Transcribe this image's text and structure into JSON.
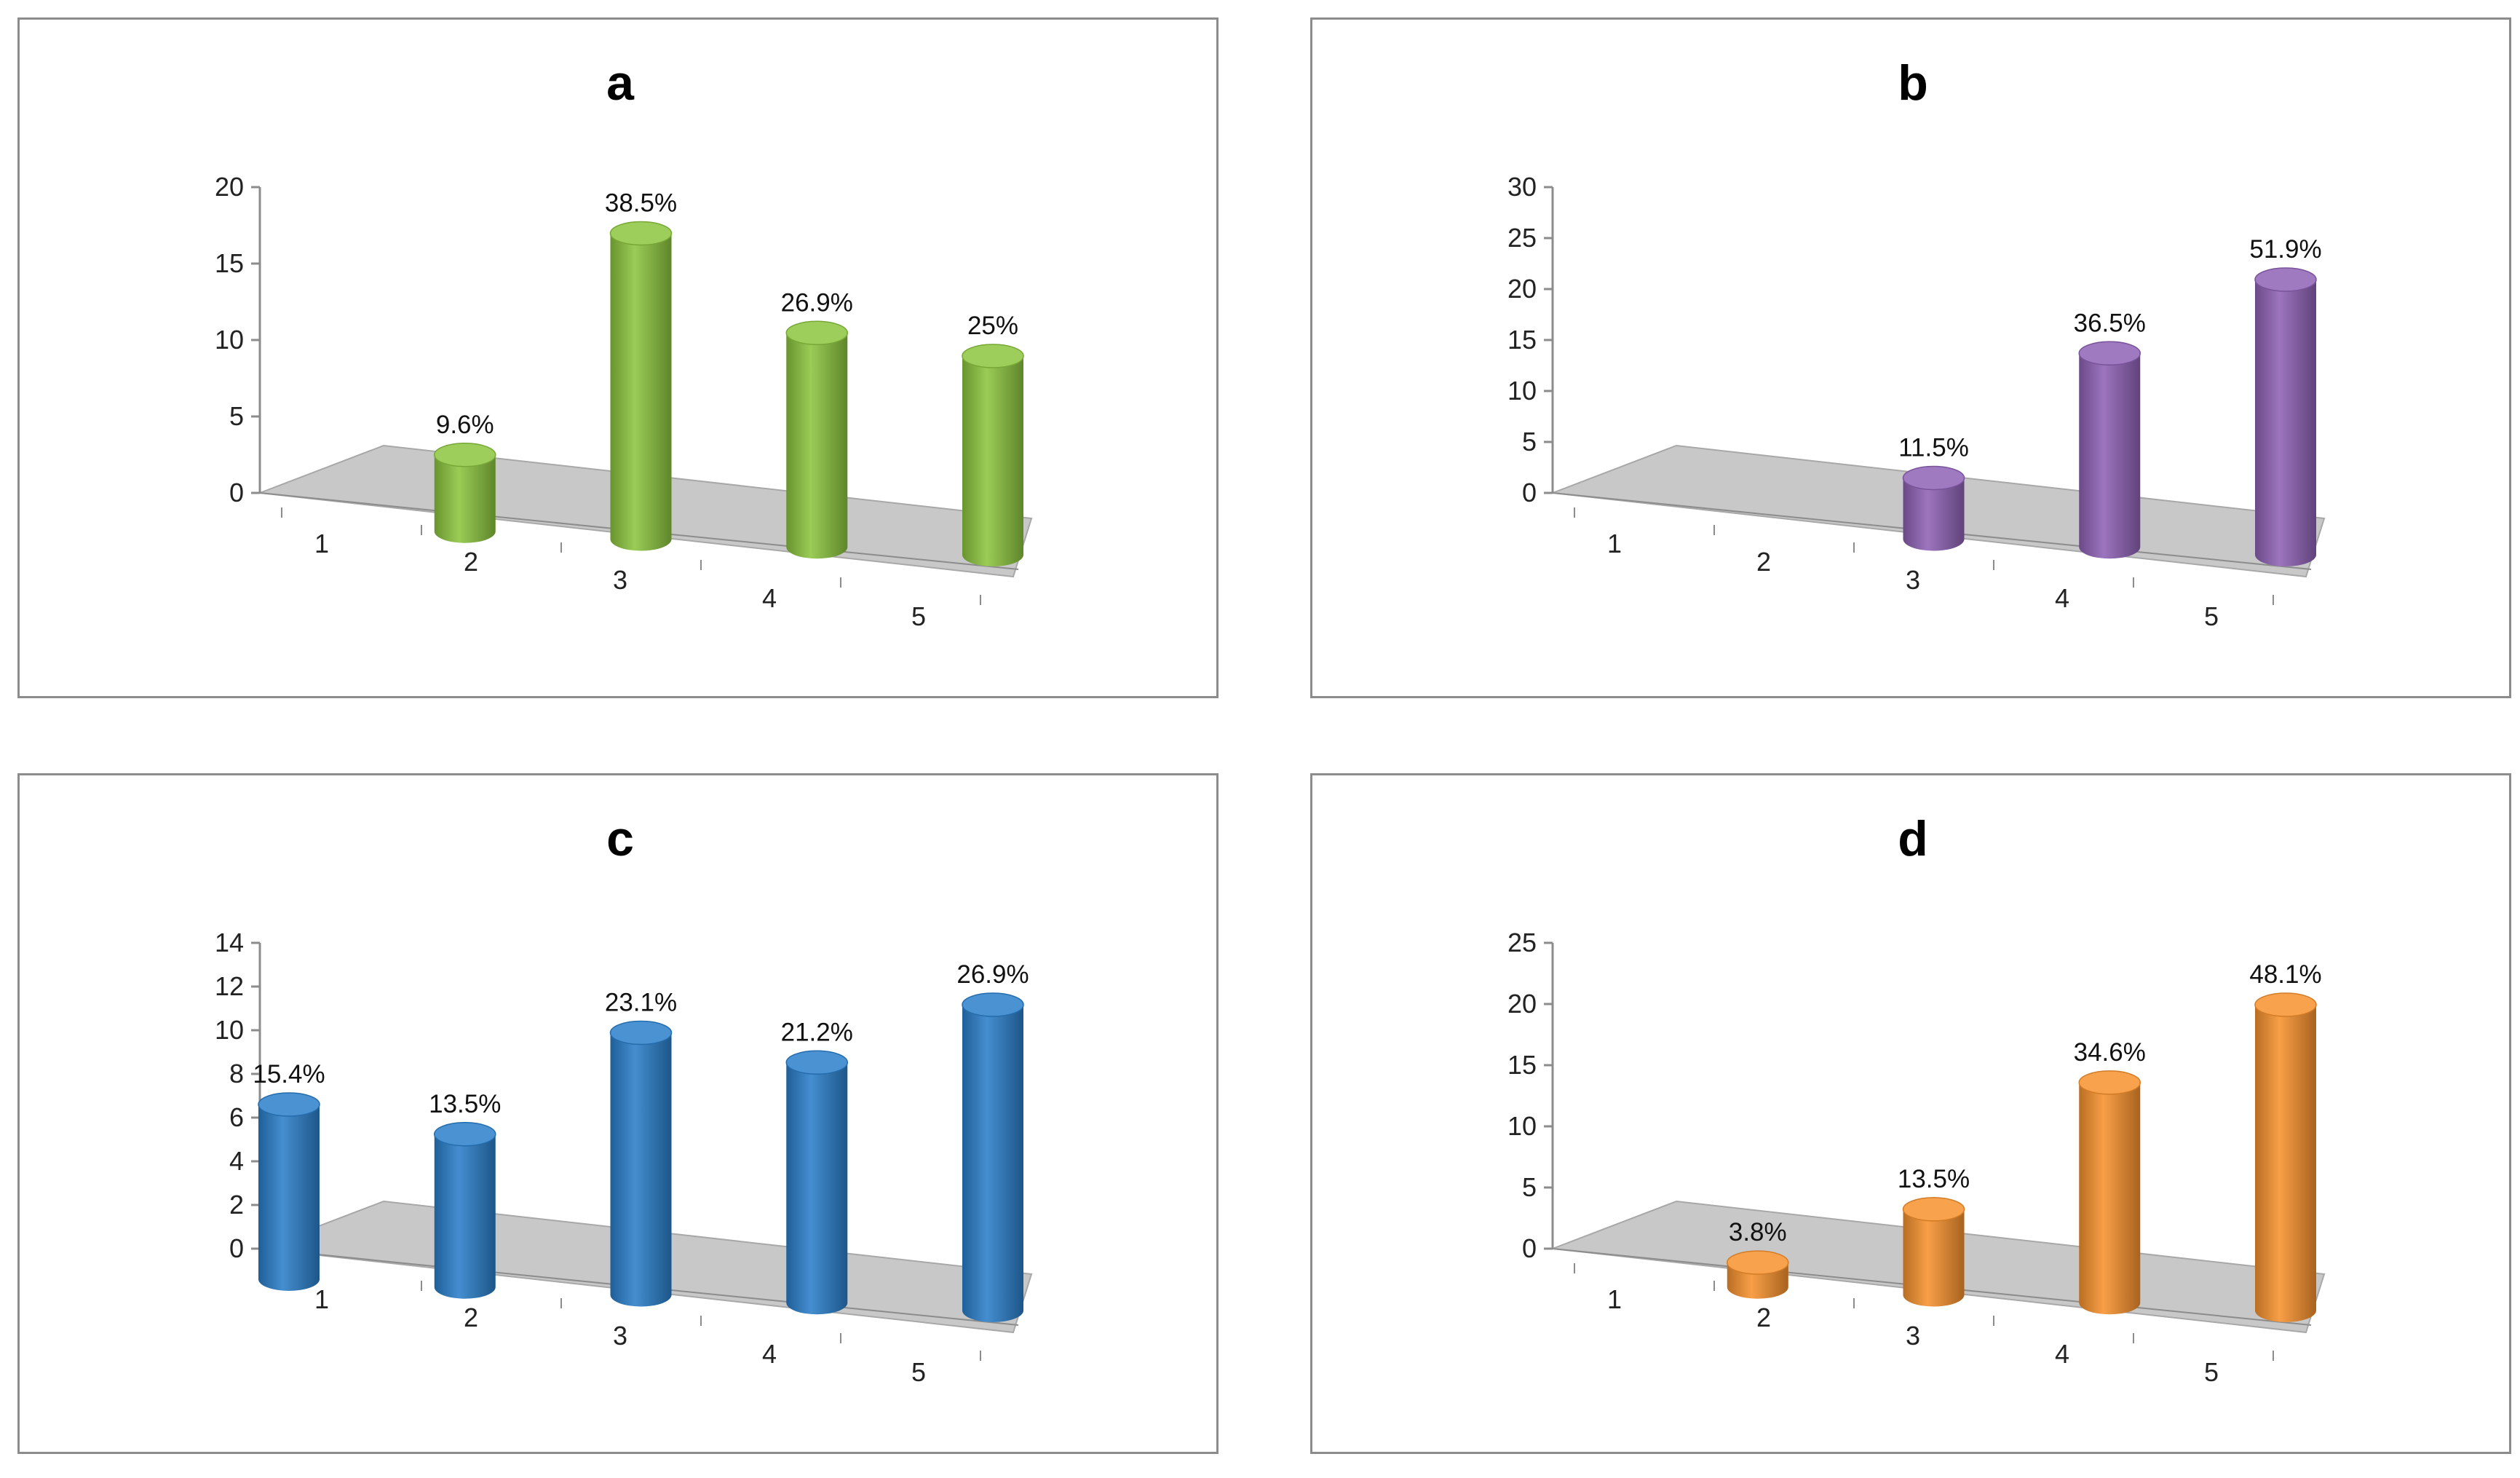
{
  "chart_data": [
    {
      "id": "a",
      "type": "bar",
      "style": "3d-cylinder",
      "title": "a",
      "categories": [
        "1",
        "2",
        "3",
        "4",
        "5"
      ],
      "values": [
        0,
        5,
        20,
        14,
        13
      ],
      "data_labels": [
        "",
        "9.6%",
        "38.5%",
        "26.9%",
        "25%"
      ],
      "yticks": [
        "0",
        "5",
        "10",
        "15",
        "20"
      ],
      "ylim": [
        0,
        20
      ],
      "color": "#8CC53F",
      "grid": false
    },
    {
      "id": "b",
      "type": "bar",
      "style": "3d-cylinder",
      "title": "b",
      "categories": [
        "1",
        "2",
        "3",
        "4",
        "5"
      ],
      "values": [
        0,
        0,
        6,
        19,
        27
      ],
      "data_labels": [
        "",
        "",
        "11.5%",
        "36.5%",
        "51.9%"
      ],
      "yticks": [
        "0",
        "5",
        "10",
        "15",
        "20",
        "25",
        "30"
      ],
      "ylim": [
        0,
        30
      ],
      "color": "#8E62B5",
      "grid": false
    },
    {
      "id": "c",
      "type": "bar",
      "style": "3d-cylinder",
      "title": "c",
      "categories": [
        "1",
        "2",
        "3",
        "4",
        "5"
      ],
      "values": [
        8,
        7,
        12,
        11,
        14
      ],
      "data_labels": [
        "15.4%",
        "13.5%",
        "23.1%",
        "21.2%",
        "26.9%"
      ],
      "yticks": [
        "0",
        "2",
        "4",
        "6",
        "8",
        "10",
        "12",
        "14"
      ],
      "ylim": [
        0,
        14
      ],
      "color": "#2A7FCA",
      "grid": false
    },
    {
      "id": "d",
      "type": "bar",
      "style": "3d-cylinder",
      "title": "d",
      "categories": [
        "1",
        "2",
        "3",
        "4",
        "5"
      ],
      "values": [
        0,
        2,
        7,
        18,
        25
      ],
      "data_labels": [
        "",
        "3.8%",
        "13.5%",
        "34.6%",
        "48.1%"
      ],
      "yticks": [
        "0",
        "5",
        "10",
        "15",
        "20",
        "25"
      ],
      "ylim": [
        0,
        25
      ],
      "color": "#F7922E",
      "grid": false
    }
  ]
}
